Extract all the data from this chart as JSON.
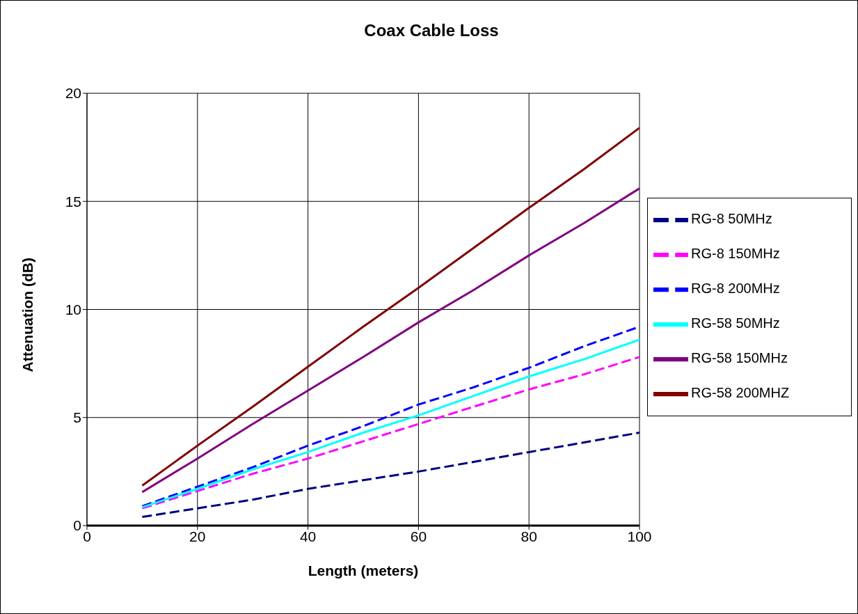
{
  "chart_data": {
    "type": "line",
    "title": "Coax Cable Loss",
    "xlabel": "Length (meters)",
    "ylabel": "Attenuation (dB)",
    "x": [
      10,
      20,
      30,
      40,
      50,
      60,
      70,
      80,
      90,
      100
    ],
    "series": [
      {
        "name": "RG-8 50MHz",
        "color": "#000080",
        "line_style": "dashed",
        "values": [
          0.4,
          0.8,
          1.2,
          1.7,
          2.1,
          2.5,
          2.95,
          3.4,
          3.85,
          4.3
        ]
      },
      {
        "name": "RG-8 150MHz",
        "color": "#ff00ff",
        "line_style": "dashed",
        "values": [
          0.8,
          1.6,
          2.4,
          3.1,
          3.9,
          4.7,
          5.5,
          6.3,
          7.0,
          7.8
        ]
      },
      {
        "name": "RG-8 200MHz",
        "color": "#0000ff",
        "line_style": "dashed",
        "values": [
          0.9,
          1.8,
          2.7,
          3.7,
          4.6,
          5.6,
          6.4,
          7.3,
          8.3,
          9.2
        ]
      },
      {
        "name": "RG-58 50MHz",
        "color": "#00ffff",
        "line_style": "solid",
        "values": [
          0.85,
          1.7,
          2.6,
          3.4,
          4.3,
          5.1,
          6.0,
          6.9,
          7.7,
          8.6
        ]
      },
      {
        "name": "RG-58 150MHz",
        "color": "#800080",
        "line_style": "solid",
        "values": [
          1.55,
          3.1,
          4.7,
          6.25,
          7.8,
          9.4,
          10.9,
          12.5,
          14.0,
          15.6
        ]
      },
      {
        "name": "RG-58 200MHZ",
        "color": "#800000",
        "line_style": "solid",
        "values": [
          1.85,
          3.7,
          5.5,
          7.35,
          9.2,
          11.0,
          12.85,
          14.7,
          16.5,
          18.4
        ]
      }
    ],
    "xlim": [
      0,
      100
    ],
    "xticks": [
      0,
      20,
      40,
      60,
      80,
      100
    ],
    "ylim": [
      0,
      20
    ],
    "yticks": [
      0,
      5,
      10,
      15,
      20
    ],
    "grid": true,
    "legend": "right",
    "marker": "none"
  }
}
